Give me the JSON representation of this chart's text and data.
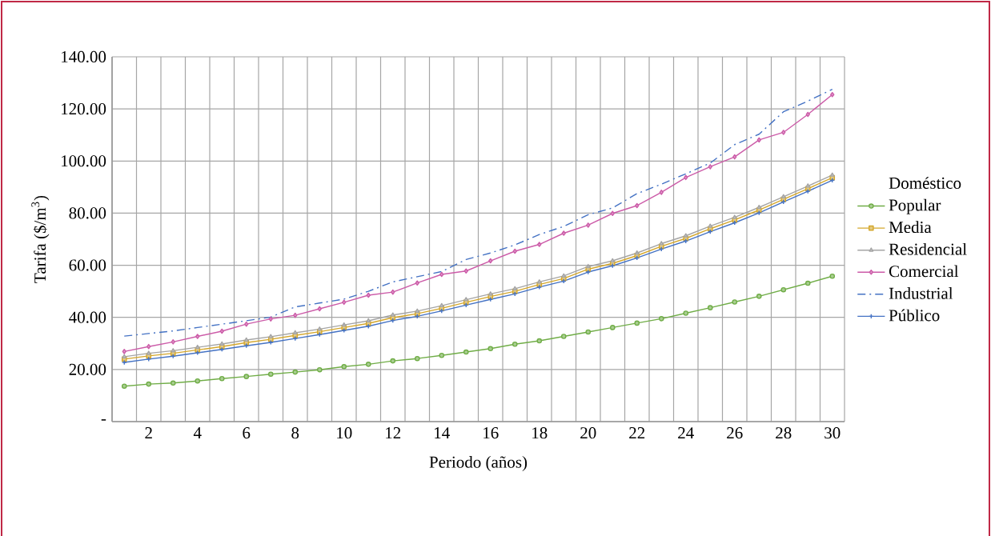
{
  "chart_data": {
    "type": "line",
    "xlabel": "Periodo (años)",
    "ylabel": "Tarifa ($/m$^{3}$)",
    "legend_title": "Doméstico",
    "categories": [
      null,
      "2",
      null,
      "4",
      null,
      "6",
      null,
      "8",
      null,
      "10",
      null,
      "12",
      null,
      "14",
      null,
      "16",
      null,
      "18",
      null,
      "20",
      null,
      "22",
      null,
      "24",
      null,
      "26",
      null,
      "28",
      null,
      "30"
    ],
    "ylim": [
      0,
      140
    ],
    "yticks": [
      {
        "value": 0,
        "label": "-"
      },
      {
        "value": 20,
        "label": "20.00"
      },
      {
        "value": 40,
        "label": "40.00"
      },
      {
        "value": 60,
        "label": "60.00"
      },
      {
        "value": 80,
        "label": "80.00"
      },
      {
        "value": 100,
        "label": "100.00"
      },
      {
        "value": 120,
        "label": "120.00"
      },
      {
        "value": 140,
        "label": "140.00"
      }
    ],
    "grid": true,
    "legend": "right",
    "series": [
      {
        "name": "Popular",
        "color": "#70ad47",
        "marker": "circle",
        "values": [
          13.6,
          14.4,
          14.8,
          15.6,
          16.5,
          17.3,
          18.2,
          19.0,
          19.9,
          21.1,
          22.0,
          23.3,
          24.2,
          25.4,
          26.7,
          28.0,
          29.7,
          31.0,
          32.7,
          34.4,
          36.1,
          37.8,
          39.5,
          41.6,
          43.7,
          45.9,
          48.1,
          50.6,
          53.1,
          55.8
        ]
      },
      {
        "name": "Media",
        "color": "#d4a72c",
        "marker": "square",
        "values": [
          24.0,
          25.2,
          26.2,
          27.5,
          28.8,
          30.3,
          31.6,
          33.1,
          34.5,
          36.1,
          37.7,
          39.9,
          41.4,
          43.5,
          45.8,
          48.0,
          50.0,
          52.6,
          54.9,
          58.5,
          60.7,
          63.7,
          67.3,
          70.3,
          74.0,
          77.4,
          81.2,
          85.3,
          89.4,
          93.6
        ]
      },
      {
        "name": "Residencial",
        "color": "#a5a5a5",
        "marker": "triangle",
        "values": [
          24.9,
          26.2,
          27.2,
          28.5,
          29.8,
          31.3,
          32.6,
          34.1,
          35.5,
          37.1,
          38.7,
          40.9,
          42.4,
          44.5,
          46.8,
          49.0,
          51.0,
          53.6,
          55.9,
          59.5,
          61.7,
          64.7,
          68.3,
          71.3,
          75.0,
          78.4,
          82.2,
          86.3,
          90.4,
          94.6
        ]
      },
      {
        "name": "Comercial",
        "color": "#cc5ba8",
        "marker": "diamond",
        "values": [
          26.9,
          28.8,
          30.6,
          32.7,
          34.7,
          37.4,
          39.4,
          40.8,
          43.3,
          45.8,
          48.5,
          49.7,
          53.2,
          56.5,
          57.8,
          61.7,
          65.4,
          68.0,
          72.3,
          75.4,
          79.9,
          82.9,
          88.0,
          93.7,
          97.8,
          101.6,
          108.1,
          111.0,
          117.9,
          125.5
        ]
      },
      {
        "name": "Industrial",
        "color": "#4472c4",
        "marker": "none",
        "line_style": "dashdot",
        "values": [
          32.8,
          33.8,
          34.8,
          36.1,
          37.4,
          38.7,
          40.1,
          44.0,
          45.5,
          47.0,
          50.0,
          53.6,
          55.6,
          57.6,
          62.2,
          64.7,
          67.8,
          71.8,
          74.9,
          79.4,
          82.0,
          87.5,
          91.1,
          95.1,
          99.2,
          106.3,
          110.3,
          118.9,
          123.0,
          127.5
        ]
      },
      {
        "name": "Público",
        "color": "#4472c4",
        "marker": "cross",
        "values": [
          22.7,
          24.0,
          25.1,
          26.4,
          27.7,
          29.1,
          30.4,
          31.9,
          33.4,
          35.0,
          36.6,
          38.8,
          40.4,
          42.5,
          44.7,
          46.9,
          49.0,
          51.6,
          53.9,
          57.4,
          59.8,
          62.8,
          66.2,
          69.3,
          72.9,
          76.3,
          80.1,
          84.3,
          88.4,
          92.6
        ]
      }
    ]
  }
}
